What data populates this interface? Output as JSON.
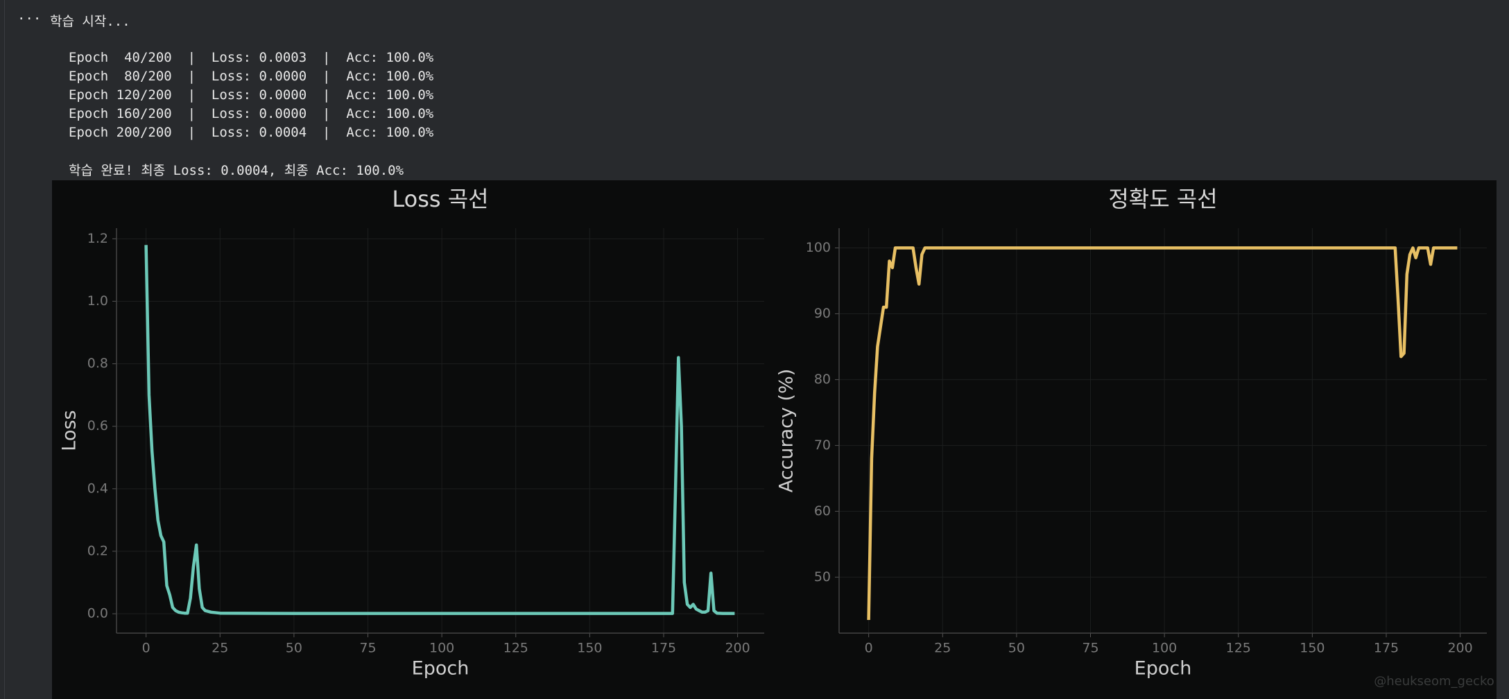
{
  "output": {
    "prompt": "···",
    "status": "학습 시작...",
    "lines": [
      "Epoch  40/200  |  Loss: 0.0003  |  Acc: 100.0%",
      "Epoch  80/200  |  Loss: 0.0000  |  Acc: 100.0%",
      "Epoch 120/200  |  Loss: 0.0000  |  Acc: 100.0%",
      "Epoch 160/200  |  Loss: 0.0000  |  Acc: 100.0%",
      "Epoch 200/200  |  Loss: 0.0004  |  Acc: 100.0%"
    ],
    "final": "학습 완료! 최종 Loss: 0.0004, 최종 Acc: 100.0%"
  },
  "watermark": "@heukseom_gecko",
  "chart_data": [
    {
      "type": "line",
      "title": "Loss 곡선",
      "xlabel": "Epoch",
      "ylabel": "Loss",
      "color": "#6cc9b8",
      "grid": true,
      "x": [
        0,
        1,
        2,
        3,
        4,
        5,
        6,
        7,
        8,
        9,
        10,
        11,
        12,
        13,
        14,
        15,
        16,
        17,
        18,
        19,
        20,
        22,
        25,
        50,
        100,
        150,
        178,
        179,
        180,
        181,
        182,
        183,
        184,
        185,
        186,
        187,
        188,
        189,
        190,
        191,
        192,
        193,
        195,
        199
      ],
      "values": [
        1.18,
        0.7,
        0.52,
        0.4,
        0.3,
        0.25,
        0.23,
        0.09,
        0.06,
        0.02,
        0.01,
        0.005,
        0.003,
        0.002,
        0.002,
        0.05,
        0.15,
        0.22,
        0.08,
        0.02,
        0.01,
        0.005,
        0.002,
        0.001,
        0.001,
        0.001,
        0.001,
        0.4,
        0.82,
        0.6,
        0.1,
        0.03,
        0.02,
        0.03,
        0.015,
        0.01,
        0.005,
        0.005,
        0.01,
        0.13,
        0.01,
        0.002,
        0.001,
        0.001
      ],
      "xlim": [
        -10,
        209
      ],
      "ylim": [
        -0.062,
        1.234
      ],
      "xticks": [
        0,
        25,
        50,
        75,
        100,
        125,
        150,
        175,
        200
      ],
      "yticks": [
        {
          "value": 0,
          "label": "0.0"
        },
        {
          "value": 0.2,
          "label": "0.2"
        },
        {
          "value": 0.4,
          "label": "0.4"
        },
        {
          "value": 0.6,
          "label": "0.6"
        },
        {
          "value": 0.8,
          "label": "0.8"
        },
        {
          "value": 1,
          "label": "1.0"
        },
        {
          "value": 1.2,
          "label": "1.2"
        }
      ]
    },
    {
      "type": "line",
      "title": "정확도 곡선",
      "xlabel": "Epoch",
      "ylabel": "Accuracy (%)",
      "color": "#e8c064",
      "grid": true,
      "x": [
        0,
        1,
        2,
        3,
        4,
        5,
        6,
        7,
        8,
        9,
        10,
        15,
        16,
        17,
        18,
        19,
        100,
        178,
        179,
        180,
        181,
        182,
        183,
        184,
        185,
        186,
        188,
        189,
        190,
        191,
        199
      ],
      "values": [
        43.5,
        68,
        78,
        85,
        88,
        91,
        91,
        98,
        97,
        100,
        100,
        100,
        97,
        94.5,
        99,
        100,
        100,
        100,
        92,
        83.5,
        84,
        96,
        99,
        100,
        98.5,
        100,
        100,
        100,
        97.5,
        100,
        100
      ],
      "xlim": [
        -10,
        209
      ],
      "ylim": [
        41.5,
        103
      ],
      "xticks": [
        0,
        25,
        50,
        75,
        100,
        125,
        150,
        175,
        200
      ],
      "yticks": [
        50,
        60,
        70,
        80,
        90,
        100
      ]
    }
  ]
}
